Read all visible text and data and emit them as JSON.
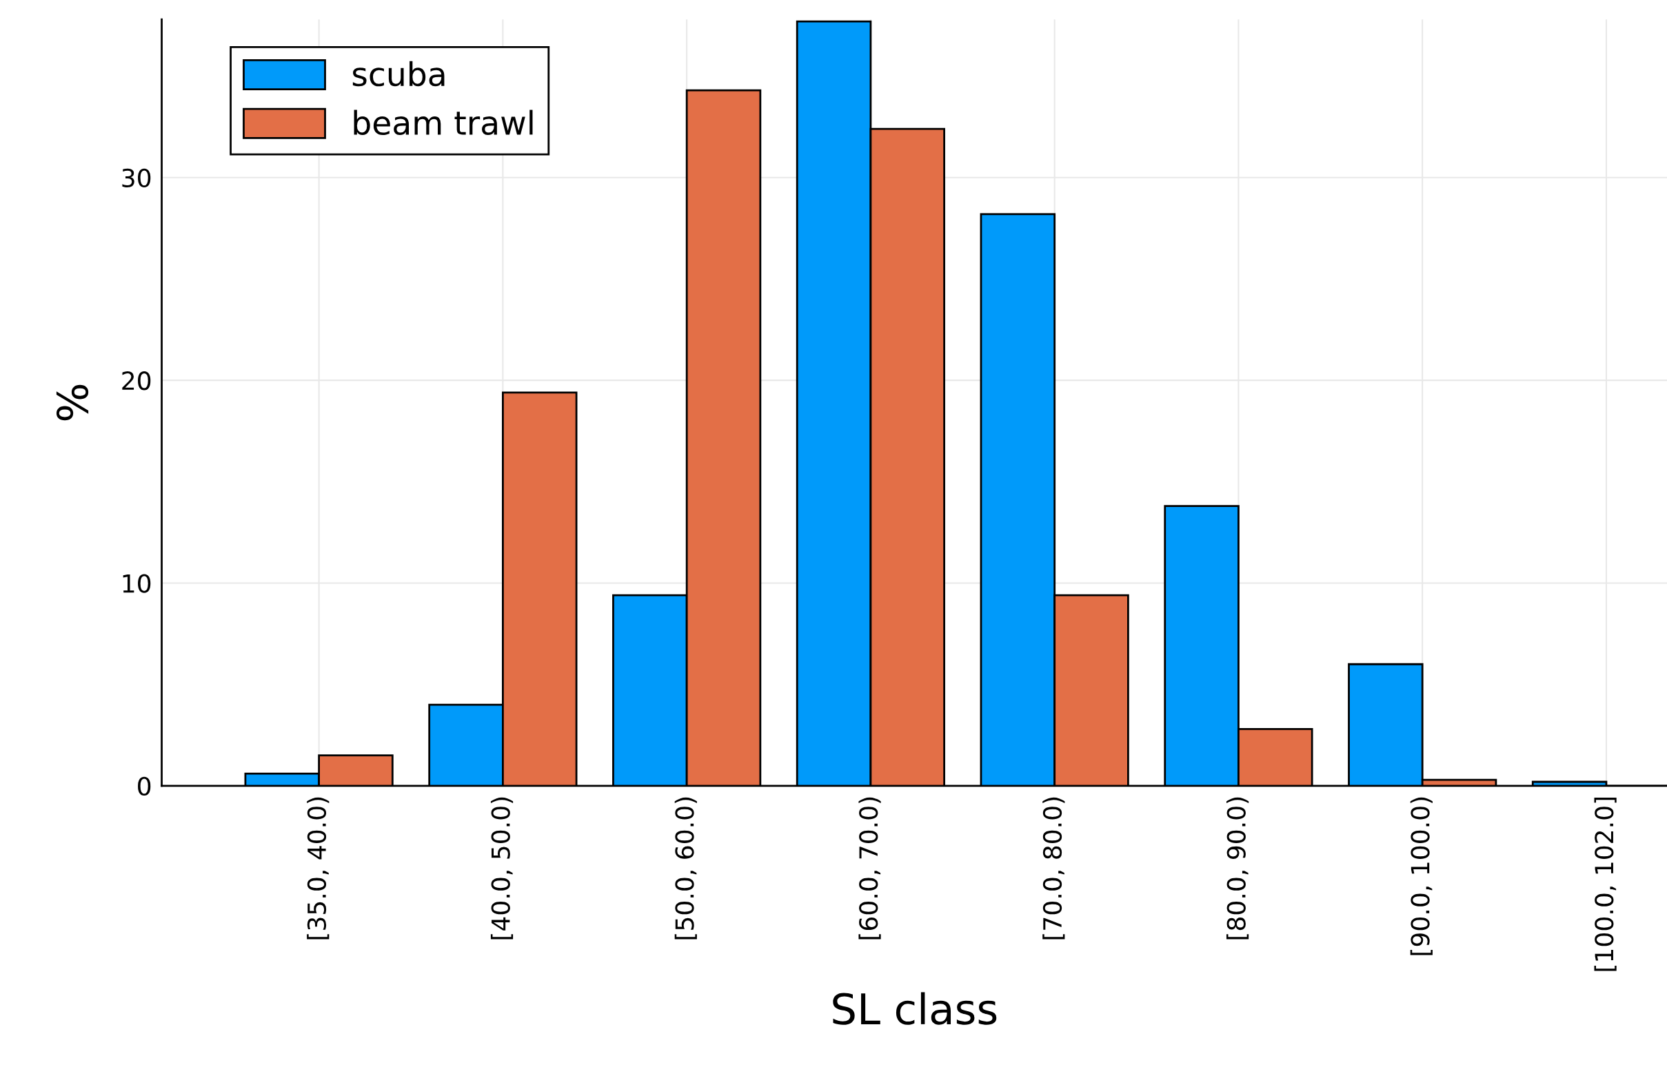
{
  "chart_data": {
    "type": "bar",
    "xlabel": "SL class",
    "ylabel": "%",
    "categories": [
      "[35.0, 40.0)",
      "[40.0, 50.0)",
      "[50.0, 60.0)",
      "[60.0, 70.0)",
      "[70.0, 80.0)",
      "[80.0, 90.0)",
      "[90.0, 100.0)",
      "[100.0, 102.0]"
    ],
    "series": [
      {
        "name": "scuba",
        "color": "#009afa",
        "values": [
          0.6,
          4.0,
          9.4,
          37.7,
          28.2,
          13.8,
          6.0,
          0.2
        ]
      },
      {
        "name": "beam trawl",
        "color": "#e36f47",
        "values": [
          1.5,
          19.4,
          34.3,
          32.4,
          9.4,
          2.8,
          0.3,
          0
        ]
      }
    ],
    "ylim": [
      0,
      37.8
    ],
    "yticks": [
      0,
      10,
      20,
      30
    ],
    "grid": true,
    "legend": "top left"
  }
}
